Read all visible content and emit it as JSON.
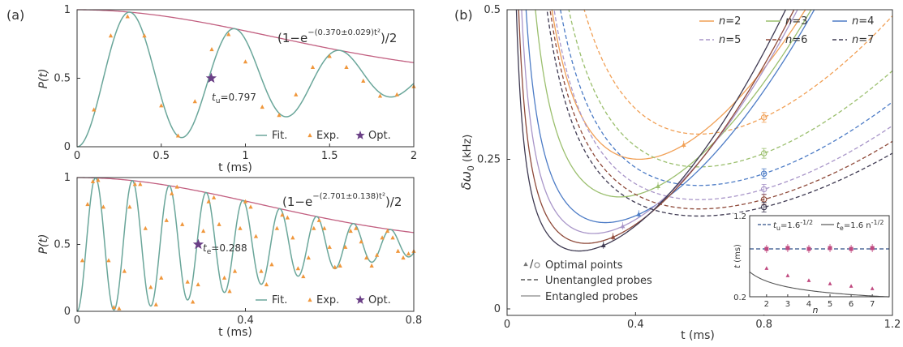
{
  "colors": {
    "fit": "#6aa69a",
    "exp": "#f0973c",
    "opt": "#6a3f86",
    "envelope": "#c25f80",
    "n2": "#f1a056",
    "n3": "#9bbf6e",
    "n4": "#4d7cc6",
    "n5": "#a996c9",
    "n6": "#8f4a3a",
    "n7": "#3f3a52",
    "inset_dashed": "#2f4f87",
    "inset_solid": "#555555",
    "inset_marker": "#c04a80"
  },
  "chart_data": [
    {
      "type": "line",
      "panel_label": "(a)",
      "xlabel": "t (ms)",
      "ylabel": "P(t)",
      "xlim": [
        0,
        2
      ],
      "ylim": [
        0,
        1
      ],
      "xticks": [
        "0",
        "0.5",
        "1",
        "1.5",
        "2"
      ],
      "yticks": [
        "0",
        "0.5",
        "1"
      ],
      "fit_model": {
        "A": 0.37,
        "omega": 10.04,
        "phi": 0.0
      },
      "series": [
        {
          "name": "Fit.",
          "kind": "line"
        },
        {
          "name": "Exp.",
          "kind": "scatter",
          "points": [
            [
              0.1,
              0.27
            ],
            [
              0.2,
              0.81
            ],
            [
              0.3,
              0.95
            ],
            [
              0.4,
              0.81
            ],
            [
              0.5,
              0.3
            ],
            [
              0.6,
              0.08
            ],
            [
              0.7,
              0.33
            ],
            [
              0.8,
              0.71
            ],
            [
              0.9,
              0.82
            ],
            [
              1.0,
              0.62
            ],
            [
              1.1,
              0.29
            ],
            [
              1.2,
              0.23
            ],
            [
              1.3,
              0.38
            ],
            [
              1.4,
              0.58
            ],
            [
              1.5,
              0.66
            ],
            [
              1.6,
              0.58
            ],
            [
              1.7,
              0.48
            ],
            [
              1.8,
              0.37
            ],
            [
              1.9,
              0.38
            ],
            [
              2.0,
              0.44
            ]
          ]
        },
        {
          "name": "Opt.",
          "kind": "star",
          "points": [
            [
              0.797,
              0.5
            ]
          ]
        }
      ],
      "envelope_label": "(1−e^{−(0.370±0.029)t²})/2",
      "env_main": "(1−e",
      "env_exp": "−(0.370±0.029)t²",
      "env_tail": ")/2",
      "annotation_sub": "u",
      "annotation_value": "=0.797",
      "legend_position": "bottom-right"
    },
    {
      "type": "line",
      "xlabel": "t (ms)",
      "ylabel": "P(t)",
      "xlim": [
        0,
        0.8
      ],
      "ylim": [
        0,
        1
      ],
      "xticks": [
        "0",
        "0.4",
        "0.8"
      ],
      "yticks": [
        "0",
        "0.5",
        "1"
      ],
      "fit_model": {
        "A": 2.701,
        "omega": 71.7,
        "phi": 0.0
      },
      "series": [
        {
          "name": "Fit.",
          "kind": "line"
        },
        {
          "name": "Exp.",
          "kind": "scatter",
          "points": [
            [
              0.0125,
              0.38
            ],
            [
              0.025,
              0.8
            ],
            [
              0.0375,
              0.97
            ],
            [
              0.05,
              0.98
            ],
            [
              0.0625,
              0.78
            ],
            [
              0.075,
              0.38
            ],
            [
              0.0875,
              0.03
            ],
            [
              0.1,
              0.02
            ],
            [
              0.1125,
              0.3
            ],
            [
              0.125,
              0.78
            ],
            [
              0.1375,
              0.95
            ],
            [
              0.15,
              0.95
            ],
            [
              0.1625,
              0.62
            ],
            [
              0.175,
              0.18
            ],
            [
              0.1875,
              0.05
            ],
            [
              0.2,
              0.25
            ],
            [
              0.2125,
              0.68
            ],
            [
              0.225,
              0.88
            ],
            [
              0.2375,
              0.93
            ],
            [
              0.25,
              0.65
            ],
            [
              0.2625,
              0.22
            ],
            [
              0.275,
              0.07
            ],
            [
              0.2875,
              0.2
            ],
            [
              0.3,
              0.6
            ],
            [
              0.3125,
              0.82
            ],
            [
              0.325,
              0.85
            ],
            [
              0.3375,
              0.65
            ],
            [
              0.35,
              0.25
            ],
            [
              0.3625,
              0.15
            ],
            [
              0.375,
              0.3
            ],
            [
              0.3875,
              0.62
            ],
            [
              0.4,
              0.82
            ],
            [
              0.4125,
              0.78
            ],
            [
              0.425,
              0.56
            ],
            [
              0.4375,
              0.3
            ],
            [
              0.45,
              0.2
            ],
            [
              0.4625,
              0.35
            ],
            [
              0.475,
              0.62
            ],
            [
              0.4875,
              0.72
            ],
            [
              0.5,
              0.7
            ],
            [
              0.5125,
              0.55
            ],
            [
              0.525,
              0.32
            ],
            [
              0.5375,
              0.26
            ],
            [
              0.55,
              0.4
            ],
            [
              0.5625,
              0.62
            ],
            [
              0.575,
              0.68
            ],
            [
              0.5875,
              0.62
            ],
            [
              0.6,
              0.48
            ],
            [
              0.6125,
              0.33
            ],
            [
              0.625,
              0.34
            ],
            [
              0.6375,
              0.48
            ],
            [
              0.65,
              0.6
            ],
            [
              0.6625,
              0.62
            ],
            [
              0.675,
              0.52
            ],
            [
              0.6875,
              0.4
            ],
            [
              0.7,
              0.34
            ],
            [
              0.7125,
              0.42
            ],
            [
              0.725,
              0.55
            ],
            [
              0.7375,
              0.6
            ],
            [
              0.75,
              0.55
            ],
            [
              0.7625,
              0.45
            ],
            [
              0.775,
              0.4
            ],
            [
              0.7875,
              0.43
            ],
            [
              0.8,
              0.45
            ]
          ]
        },
        {
          "name": "Opt.",
          "kind": "star",
          "points": [
            [
              0.288,
              0.5
            ]
          ]
        }
      ],
      "envelope_label": "(1−e^{−(2.701±0.138)t²})/2",
      "env_main": "(1−e",
      "env_exp": "−(2.701±0.138)t²",
      "env_tail": ")/2",
      "annotation_sub": "e",
      "annotation_value": "=0.288",
      "legend_position": "bottom-right"
    },
    {
      "type": "line",
      "panel_label": "(b)",
      "xlabel": "t (ms)",
      "ylabel": "δω₀ (kHz)",
      "ylabel_main": "δω",
      "ylabel_sub": "0",
      "ylabel_unit": " (kHz)",
      "xlim": [
        0,
        1.2
      ],
      "ylim": [
        0,
        0.5
      ],
      "xticks": [
        "0",
        "0.4",
        "0.8",
        "1.2"
      ],
      "yticks": [
        "0",
        "0.25",
        "0.5"
      ],
      "legend_position": "top",
      "series": [
        {
          "name": "n=2",
          "n": 2,
          "color_key": "n2",
          "ent_min": [
            0.55,
            0.274
          ],
          "unent_min": [
            0.8,
            0.32
          ]
        },
        {
          "name": "n=3",
          "n": 3,
          "color_key": "n3",
          "ent_min": [
            0.47,
            0.205
          ],
          "unent_min": [
            0.8,
            0.26
          ]
        },
        {
          "name": "n=4",
          "n": 4,
          "color_key": "n4",
          "ent_min": [
            0.41,
            0.158
          ],
          "unent_min": [
            0.8,
            0.226
          ]
        },
        {
          "name": "n=5",
          "n": 5,
          "color_key": "n5",
          "ent_min": [
            0.36,
            0.138
          ],
          "unent_min": [
            0.8,
            0.2
          ]
        },
        {
          "name": "n=6",
          "n": 6,
          "color_key": "n6",
          "ent_min": [
            0.33,
            0.12
          ],
          "unent_min": [
            0.8,
            0.183
          ]
        },
        {
          "name": "n=7",
          "n": 7,
          "color_key": "n7",
          "ent_min": [
            0.3,
            0.106
          ],
          "unent_min": [
            0.8,
            0.17
          ]
        }
      ],
      "legend_bottom": [
        "Optimal points",
        "Unentangled probes",
        "Entangled probes"
      ]
    },
    {
      "type": "line",
      "inset": true,
      "xlabel": "n",
      "ylabel": "t (ms)",
      "xlim": [
        1.2,
        7.8
      ],
      "ylim": [
        0.2,
        1.2
      ],
      "xticks": [
        "2",
        "3",
        "4",
        "5",
        "6",
        "7"
      ],
      "yticks": [
        "0.2",
        "1.2"
      ],
      "series": [
        {
          "name": "t_u=1.6^{-1/2}",
          "label_main": "t",
          "label_sub": "u",
          "label_val": "=1.6",
          "label_sup": "-1/2",
          "kind": "dashed",
          "constant": 0.79,
          "points": [
            [
              2,
              0.79
            ],
            [
              3,
              0.8
            ],
            [
              4,
              0.79
            ],
            [
              5,
              0.8
            ],
            [
              6,
              0.79
            ],
            [
              7,
              0.8
            ]
          ]
        },
        {
          "name": "t_e=1.6n^{-1/2}",
          "label_main": "t",
          "label_sub": "e",
          "label_val": "=1.6 n",
          "label_sup": "-1/2",
          "kind": "solid",
          "points": [
            [
              2,
              0.55
            ],
            [
              3,
              0.46
            ],
            [
              4,
              0.4
            ],
            [
              5,
              0.36
            ],
            [
              6,
              0.33
            ],
            [
              7,
              0.3
            ]
          ]
        }
      ]
    }
  ]
}
